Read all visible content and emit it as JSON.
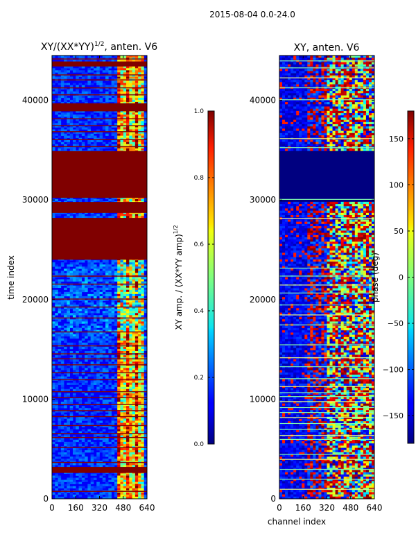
{
  "suptitle": "2015-08-04 0.0-24.0",
  "chart_data": [
    {
      "type": "heatmap",
      "title_main": "XY/(XX*YY)",
      "title_exp": "1/2",
      "title_tail": ", anten. V6",
      "ylabel": "time index",
      "xlabel": "",
      "xlim": [
        0,
        640
      ],
      "ylim": [
        0,
        44500
      ],
      "xticks": [
        "0",
        "160",
        "320",
        "480",
        "640"
      ],
      "yticks": [
        "0",
        "10000",
        "20000",
        "30000",
        "40000"
      ],
      "colorbar": {
        "label_main": "XY amp. / (XX*YY amp)",
        "label_exp": "1/2",
        "range": [
          0.0,
          1.0
        ],
        "ticks": [
          "0.0",
          "0.2",
          "0.4",
          "0.6",
          "0.8",
          "1.0"
        ],
        "colormap": "jet"
      },
      "saturated_row_bands": [
        [
          2600,
          3200
        ],
        [
          24000,
          28200
        ],
        [
          28700,
          29800
        ],
        [
          30200,
          34900
        ],
        [
          38900,
          39700
        ],
        [
          43400,
          43900
        ]
      ],
      "bright_channel_band": [
        440,
        620
      ]
    },
    {
      "type": "heatmap",
      "title_main": "XY, anten. V6",
      "ylabel": "",
      "xlabel": "channel index",
      "xlim": [
        0,
        640
      ],
      "ylim": [
        0,
        44500
      ],
      "xticks": [
        "0",
        "160",
        "320",
        "480",
        "640"
      ],
      "yticks": [
        "0",
        "10000",
        "20000",
        "30000",
        "40000"
      ],
      "colorbar": {
        "label_main": "phase (deg)",
        "range": [
          -180,
          180
        ],
        "ticks": [
          "−150",
          "−100",
          "−50",
          "0",
          "50",
          "100",
          "150"
        ],
        "tick_values": [
          -150,
          -100,
          -50,
          0,
          50,
          100,
          150
        ],
        "colormap": "jet"
      },
      "uniform_row_bands": [
        [
          29800,
          35000
        ]
      ],
      "bright_channel_band": [
        380,
        640
      ]
    }
  ]
}
